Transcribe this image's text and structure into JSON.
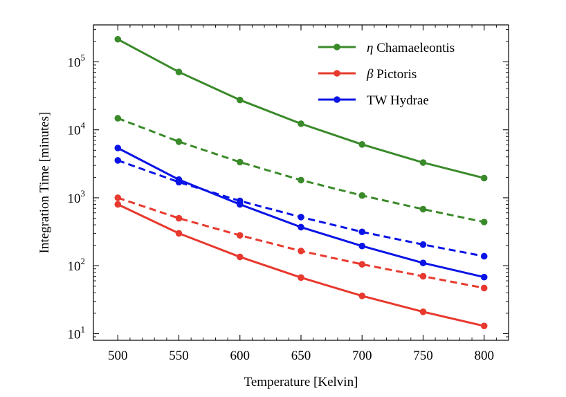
{
  "chart_data": {
    "type": "line",
    "xlabel": "Temperature [Kelvin]",
    "ylabel": "Integration Time [minutes]",
    "xlim": [
      480,
      820
    ],
    "ylim": [
      8,
      350000
    ],
    "yscale": "log",
    "x_ticks": [
      500,
      550,
      600,
      650,
      700,
      750,
      800
    ],
    "y_ticks": [
      {
        "value": 10,
        "base": "10",
        "exp": "1"
      },
      {
        "value": 100,
        "base": "10",
        "exp": "2"
      },
      {
        "value": 1000,
        "base": "10",
        "exp": "3"
      },
      {
        "value": 10000,
        "base": "10",
        "exp": "4"
      },
      {
        "value": 100000,
        "base": "10",
        "exp": "5"
      }
    ],
    "grid": false,
    "legend_position": "top-right",
    "x": [
      500,
      550,
      600,
      650,
      700,
      750,
      800
    ],
    "series": [
      {
        "name": "Chamaeleontis",
        "symbol": "η",
        "color": "#3a8a2a",
        "style": "solid",
        "legend": true,
        "values": [
          215000,
          71000,
          27500,
          12300,
          6100,
          3300,
          1950
        ]
      },
      {
        "name": "Pictoris",
        "symbol": "β",
        "color": "#e8392e",
        "style": "solid",
        "legend": true,
        "values": [
          800,
          300,
          135,
          67,
          36,
          21,
          13
        ]
      },
      {
        "name": "TW Hydrae",
        "symbol": "",
        "color": "#0a14e6",
        "style": "solid",
        "legend": true,
        "values": [
          5400,
          1850,
          800,
          370,
          195,
          110,
          68
        ]
      },
      {
        "color": "#3a8a2a",
        "style": "dashed",
        "legend": false,
        "values": [
          14800,
          6700,
          3350,
          1820,
          1080,
          680,
          440
        ]
      },
      {
        "color": "#e8392e",
        "style": "dashed",
        "legend": false,
        "values": [
          1000,
          500,
          280,
          165,
          105,
          70,
          47
        ]
      },
      {
        "color": "#0a14e6",
        "style": "dashed",
        "legend": false,
        "values": [
          3550,
          1700,
          900,
          520,
          315,
          205,
          138
        ]
      }
    ]
  }
}
